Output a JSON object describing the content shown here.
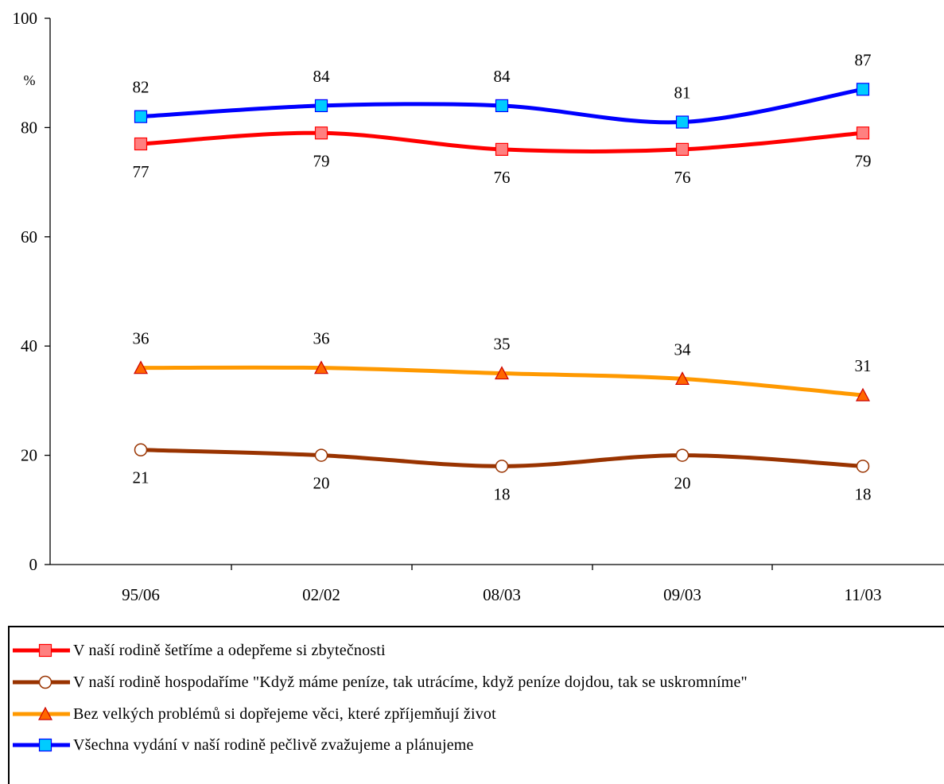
{
  "chart_data": {
    "type": "line",
    "unit_label": "%",
    "categories": [
      "95/06",
      "02/02",
      "08/03",
      "09/03",
      "11/03"
    ],
    "ylim": [
      0,
      100
    ],
    "yticks": [
      0,
      20,
      40,
      60,
      80,
      100
    ],
    "grid": false,
    "legend_position": "bottom",
    "series": [
      {
        "name": "V naší rodině šetříme a odepřeme si zbytečnosti",
        "color": "#ff0000",
        "marker": "square",
        "marker_fill": "#ff8080",
        "label_position": "below",
        "values": [
          77,
          79,
          76,
          76,
          79
        ]
      },
      {
        "name": "V naší rodině hospodaříme  \"Když máme peníze, tak utrácíme, když peníze dojdou, tak se uskromníme\"",
        "color": "#993300",
        "marker": "circle",
        "marker_fill": "#ffffff",
        "label_position": "below",
        "values": [
          21,
          20,
          18,
          20,
          18
        ]
      },
      {
        "name": "Bez velkých problémů si dopřejeme věci, které zpříjemňují život",
        "color": "#ff9900",
        "marker": "triangle",
        "marker_fill": "#ff6600",
        "label_position": "above",
        "values": [
          36,
          36,
          35,
          34,
          31
        ]
      },
      {
        "name": "Všechna vydání v naší rodině pečlivě zvažujeme a plánujeme",
        "color": "#0000ff",
        "marker": "square",
        "marker_fill": "#00ccff",
        "label_position": "above",
        "values": [
          82,
          84,
          84,
          81,
          87
        ]
      }
    ]
  }
}
